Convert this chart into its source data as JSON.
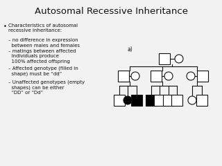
{
  "title": "Autosomal Recessive Inheritance",
  "title_fontsize": 9.5,
  "bullet_text_main": "Characteristics of autosomal\nrecessive inheritance:",
  "bullet_sub": [
    "– no difference in expression\n  between males and females",
    "– matings between affected\n  individuals produce\n  100% affected offspring",
    "– Affected genotype (filled in\n  shape) must be “dd”",
    "– Unaffected genotypes (empty\n  shapes) can be either\n  “DD” or “Dd”"
  ],
  "label_a": "a)",
  "bg_color": "#f2f2f2",
  "shape_edge": "#111111",
  "shape_fill_empty": "#ffffff",
  "shape_fill_solid": "#000000",
  "line_color": "#111111",
  "text_color": "#111111",
  "sq_half": 8,
  "circ_r": 6
}
